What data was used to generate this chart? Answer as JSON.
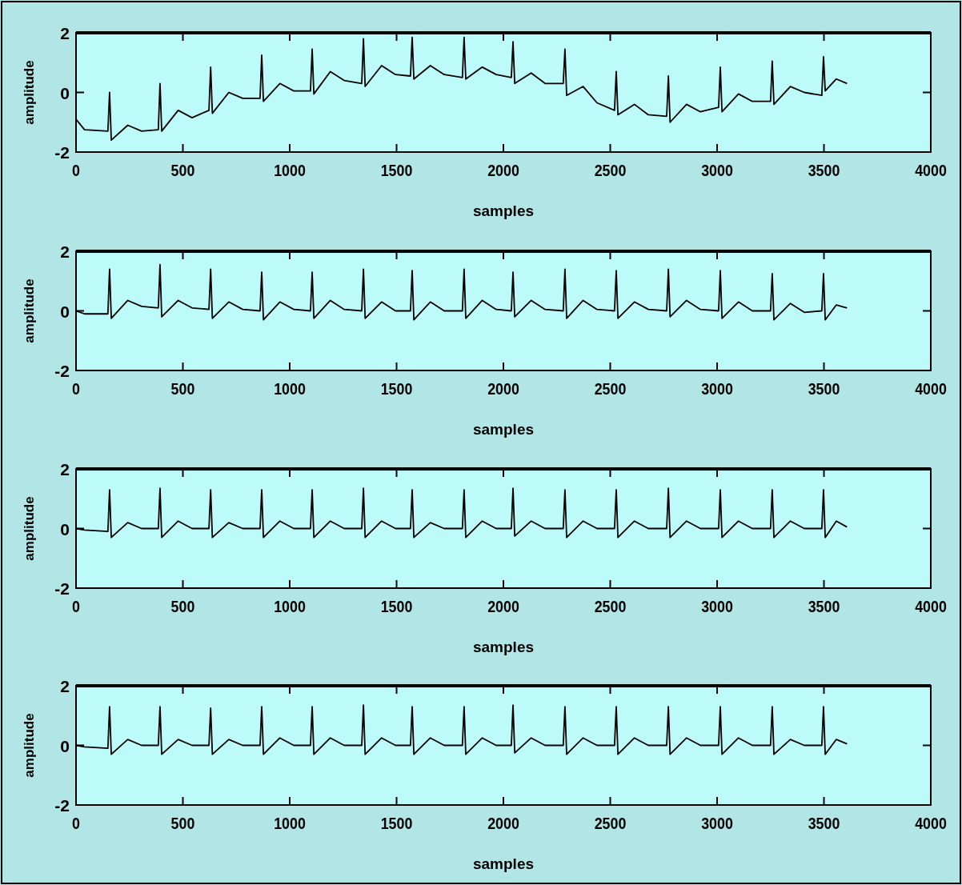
{
  "chart_data": [
    {
      "type": "line",
      "xlabel": "samples",
      "ylabel": "amplitude",
      "xlim": [
        0,
        4000
      ],
      "ylim": [
        -2,
        2
      ],
      "xticks": [
        0,
        500,
        1000,
        1500,
        2000,
        2500,
        3000,
        3500,
        4000
      ],
      "yticks": [
        -2,
        0,
        2
      ],
      "x": [
        0,
        40,
        149,
        157,
        165,
        242,
        307,
        385,
        393,
        401,
        478,
        543,
        622,
        630,
        638,
        715,
        780,
        861,
        869,
        877,
        954,
        1019,
        1097,
        1105,
        1113,
        1190,
        1255,
        1337,
        1345,
        1353,
        1430,
        1495,
        1565,
        1573,
        1581,
        1658,
        1723,
        1808,
        1816,
        1824,
        1901,
        1966,
        2037,
        2045,
        2053,
        2130,
        2195,
        2280,
        2288,
        2296,
        2373,
        2438,
        2520,
        2528,
        2536,
        2613,
        2678,
        2764,
        2772,
        2780,
        2857,
        2922,
        3007,
        3015,
        3023,
        3100,
        3165,
        3250,
        3258,
        3266,
        3343,
        3408,
        3490,
        3498,
        3506,
        3558,
        3608
      ],
      "series": [
        {
          "color": "#000000",
          "values": [
            -0.9,
            -1.25,
            -1.3,
            0.0,
            -1.6,
            -1.1,
            -1.3,
            -1.25,
            0.3,
            -1.3,
            -0.6,
            -0.85,
            -0.6,
            0.85,
            -0.7,
            0.0,
            -0.2,
            -0.2,
            1.25,
            -0.3,
            0.3,
            0.05,
            0.05,
            1.45,
            -0.05,
            0.7,
            0.4,
            0.3,
            1.8,
            0.2,
            0.9,
            0.6,
            0.55,
            1.85,
            0.45,
            0.9,
            0.6,
            0.5,
            1.85,
            0.45,
            0.85,
            0.6,
            0.5,
            1.7,
            0.3,
            0.65,
            0.3,
            0.3,
            1.45,
            -0.1,
            0.2,
            -0.35,
            -0.6,
            0.7,
            -0.75,
            -0.4,
            -0.75,
            -0.8,
            0.55,
            -1.0,
            -0.4,
            -0.65,
            -0.5,
            0.85,
            -0.65,
            -0.05,
            -0.3,
            -0.3,
            1.05,
            -0.4,
            0.2,
            0.0,
            -0.1,
            1.2,
            0.05,
            0.45,
            0.3
          ]
        }
      ]
    },
    {
      "type": "line",
      "xlabel": "samples",
      "ylabel": "amplitude",
      "xlim": [
        0,
        4000
      ],
      "ylim": [
        -2,
        2
      ],
      "xticks": [
        0,
        500,
        1000,
        1500,
        2000,
        2500,
        3000,
        3500,
        4000
      ],
      "yticks": [
        -2,
        0,
        2
      ],
      "x": [
        0,
        40,
        149,
        157,
        165,
        242,
        307,
        385,
        393,
        401,
        478,
        543,
        622,
        630,
        638,
        715,
        780,
        861,
        869,
        877,
        954,
        1019,
        1097,
        1105,
        1113,
        1190,
        1255,
        1337,
        1345,
        1353,
        1430,
        1495,
        1565,
        1573,
        1581,
        1658,
        1723,
        1808,
        1816,
        1824,
        1901,
        1966,
        2037,
        2045,
        2053,
        2130,
        2195,
        2280,
        2288,
        2296,
        2373,
        2438,
        2520,
        2528,
        2536,
        2613,
        2678,
        2764,
        2772,
        2780,
        2857,
        2922,
        3007,
        3015,
        3023,
        3100,
        3165,
        3250,
        3258,
        3266,
        3343,
        3408,
        3490,
        3498,
        3506,
        3558,
        3608
      ],
      "series": [
        {
          "color": "#000000",
          "values": [
            0.0,
            -0.1,
            -0.1,
            1.4,
            -0.25,
            0.35,
            0.15,
            0.1,
            1.55,
            -0.2,
            0.35,
            0.1,
            0.05,
            1.4,
            -0.25,
            0.3,
            0.05,
            0.0,
            1.3,
            -0.3,
            0.3,
            0.05,
            0.0,
            1.3,
            -0.25,
            0.35,
            0.05,
            0.0,
            1.4,
            -0.25,
            0.3,
            0.0,
            0.0,
            1.35,
            -0.3,
            0.3,
            0.0,
            0.0,
            1.4,
            -0.25,
            0.35,
            0.05,
            0.0,
            1.3,
            -0.2,
            0.35,
            0.05,
            0.0,
            1.4,
            -0.25,
            0.35,
            0.05,
            0.0,
            1.35,
            -0.25,
            0.3,
            0.05,
            0.0,
            1.4,
            -0.2,
            0.35,
            0.05,
            0.0,
            1.35,
            -0.25,
            0.3,
            0.0,
            0.0,
            1.25,
            -0.3,
            0.25,
            -0.05,
            0.0,
            1.25,
            -0.3,
            0.2,
            0.1
          ]
        }
      ]
    },
    {
      "type": "line",
      "xlabel": "samples",
      "ylabel": "amplitude",
      "xlim": [
        0,
        4000
      ],
      "ylim": [
        -2,
        2
      ],
      "xticks": [
        0,
        500,
        1000,
        1500,
        2000,
        2500,
        3000,
        3500,
        4000
      ],
      "yticks": [
        -2,
        0,
        2
      ],
      "x": [
        0,
        40,
        149,
        157,
        165,
        242,
        307,
        385,
        393,
        401,
        478,
        543,
        622,
        630,
        638,
        715,
        780,
        861,
        869,
        877,
        954,
        1019,
        1097,
        1105,
        1113,
        1190,
        1255,
        1337,
        1345,
        1353,
        1430,
        1495,
        1565,
        1573,
        1581,
        1658,
        1723,
        1808,
        1816,
        1824,
        1901,
        1966,
        2037,
        2045,
        2053,
        2130,
        2195,
        2280,
        2288,
        2296,
        2373,
        2438,
        2520,
        2528,
        2536,
        2613,
        2678,
        2764,
        2772,
        2780,
        2857,
        2922,
        3007,
        3015,
        3023,
        3100,
        3165,
        3250,
        3258,
        3266,
        3343,
        3408,
        3490,
        3498,
        3506,
        3558,
        3608
      ],
      "series": [
        {
          "color": "#000000",
          "values": [
            0.0,
            -0.05,
            -0.1,
            1.3,
            -0.3,
            0.2,
            0.0,
            0.0,
            1.35,
            -0.3,
            0.25,
            0.0,
            0.0,
            1.3,
            -0.3,
            0.2,
            0.0,
            0.0,
            1.3,
            -0.3,
            0.25,
            0.0,
            0.0,
            1.3,
            -0.3,
            0.25,
            0.0,
            0.0,
            1.35,
            -0.3,
            0.25,
            0.0,
            0.0,
            1.3,
            -0.3,
            0.2,
            0.0,
            0.0,
            1.3,
            -0.3,
            0.25,
            0.0,
            0.0,
            1.35,
            -0.25,
            0.25,
            0.0,
            0.0,
            1.3,
            -0.3,
            0.25,
            0.0,
            0.0,
            1.3,
            -0.3,
            0.25,
            0.0,
            0.0,
            1.35,
            -0.3,
            0.25,
            0.0,
            0.0,
            1.3,
            -0.3,
            0.25,
            0.0,
            0.0,
            1.3,
            -0.3,
            0.25,
            0.0,
            0.0,
            1.3,
            -0.3,
            0.25,
            0.05
          ]
        }
      ]
    },
    {
      "type": "line",
      "xlabel": "samples",
      "ylabel": "amplitude",
      "xlim": [
        0,
        4000
      ],
      "ylim": [
        -2,
        2
      ],
      "xticks": [
        0,
        500,
        1000,
        1500,
        2000,
        2500,
        3000,
        3500,
        4000
      ],
      "yticks": [
        -2,
        0,
        2
      ],
      "x": [
        0,
        40,
        149,
        157,
        165,
        242,
        307,
        385,
        393,
        401,
        478,
        543,
        622,
        630,
        638,
        715,
        780,
        861,
        869,
        877,
        954,
        1019,
        1097,
        1105,
        1113,
        1190,
        1255,
        1337,
        1345,
        1353,
        1430,
        1495,
        1565,
        1573,
        1581,
        1658,
        1723,
        1808,
        1816,
        1824,
        1901,
        1966,
        2037,
        2045,
        2053,
        2130,
        2195,
        2280,
        2288,
        2296,
        2373,
        2438,
        2520,
        2528,
        2536,
        2613,
        2678,
        2764,
        2772,
        2780,
        2857,
        2922,
        3007,
        3015,
        3023,
        3100,
        3165,
        3250,
        3258,
        3266,
        3343,
        3408,
        3490,
        3498,
        3506,
        3558,
        3608
      ],
      "series": [
        {
          "color": "#000000",
          "values": [
            0.0,
            -0.05,
            -0.1,
            1.3,
            -0.3,
            0.2,
            0.0,
            0.0,
            1.3,
            -0.3,
            0.2,
            0.0,
            0.0,
            1.25,
            -0.3,
            0.2,
            0.0,
            0.0,
            1.3,
            -0.3,
            0.25,
            0.0,
            0.0,
            1.3,
            -0.3,
            0.25,
            0.0,
            0.0,
            1.35,
            -0.3,
            0.25,
            0.0,
            0.0,
            1.3,
            -0.3,
            0.25,
            0.0,
            0.0,
            1.3,
            -0.3,
            0.25,
            0.0,
            0.0,
            1.35,
            -0.25,
            0.25,
            0.0,
            0.0,
            1.3,
            -0.3,
            0.25,
            0.0,
            0.0,
            1.3,
            -0.3,
            0.25,
            0.0,
            0.0,
            1.3,
            -0.3,
            0.25,
            0.0,
            0.0,
            1.3,
            -0.3,
            0.25,
            0.0,
            0.0,
            1.3,
            -0.3,
            0.2,
            0.0,
            0.0,
            1.3,
            -0.3,
            0.2,
            0.05
          ]
        }
      ]
    }
  ]
}
